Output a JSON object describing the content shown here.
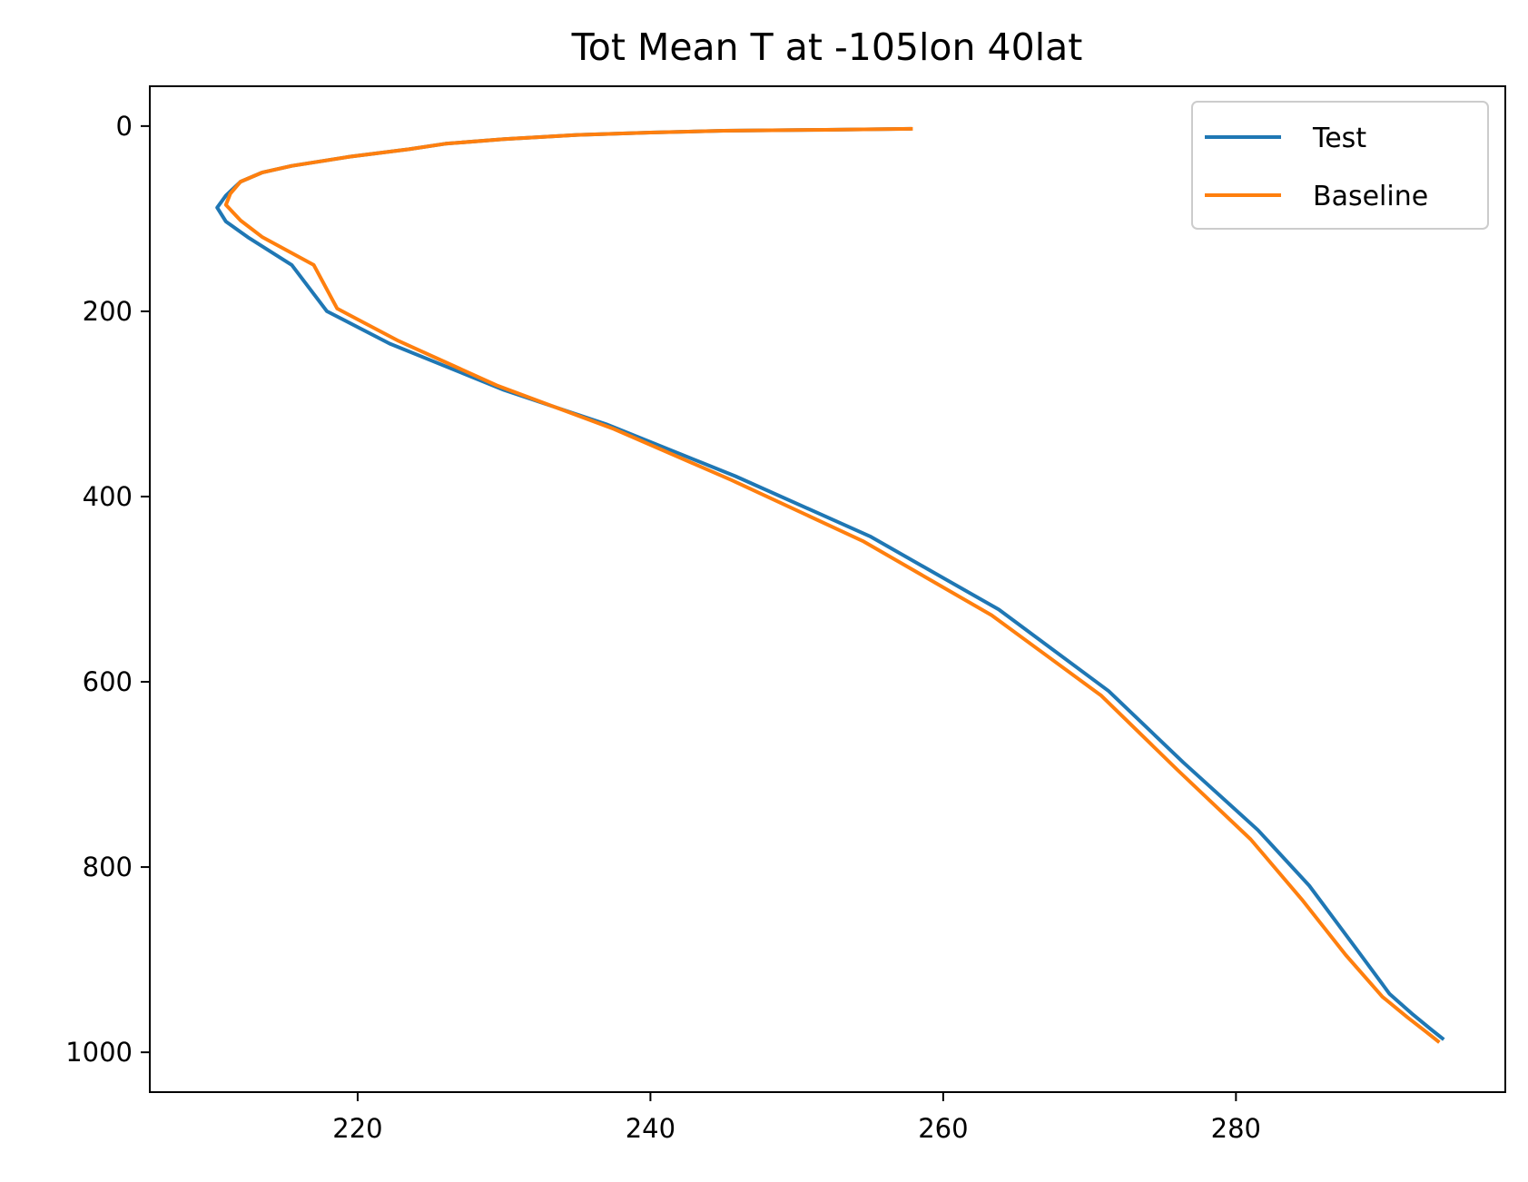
{
  "chart_data": {
    "type": "line",
    "title": "Tot Mean T at -105lon 40lat",
    "xlabel": "",
    "ylabel": "",
    "xlim": [
      205.8,
      298.4
    ],
    "ylim": [
      1043,
      -43
    ],
    "y_inverted": true,
    "x_ticks": [
      220,
      240,
      260,
      280
    ],
    "y_ticks": [
      0,
      200,
      400,
      600,
      800,
      1000
    ],
    "grid": false,
    "legend": "top-right",
    "series": [
      {
        "name": "Test",
        "color": "#1f77b4",
        "points": [
          [
            257.7,
            3
          ],
          [
            252,
            4
          ],
          [
            245,
            5
          ],
          [
            240,
            7
          ],
          [
            235,
            9.5
          ],
          [
            230,
            14
          ],
          [
            226,
            19
          ],
          [
            223.5,
            25
          ],
          [
            219.5,
            33
          ],
          [
            215.5,
            43
          ],
          [
            213.5,
            50
          ],
          [
            212,
            60
          ],
          [
            211,
            75
          ],
          [
            210.4,
            88
          ],
          [
            211,
            103
          ],
          [
            212.5,
            120
          ],
          [
            215.5,
            150
          ],
          [
            217.9,
            200
          ],
          [
            222.2,
            235
          ],
          [
            230,
            285
          ],
          [
            237,
            322
          ],
          [
            245.8,
            378
          ],
          [
            255,
            443
          ],
          [
            263.8,
            522
          ],
          [
            271.3,
            610
          ],
          [
            276.4,
            687
          ],
          [
            281.5,
            760
          ],
          [
            285,
            820
          ],
          [
            288.3,
            890
          ],
          [
            290.5,
            937
          ],
          [
            292,
            958
          ],
          [
            293.3,
            975
          ],
          [
            294.1,
            985
          ]
        ]
      },
      {
        "name": "Baseline",
        "color": "#ff7f0e",
        "points": [
          [
            257.8,
            3
          ],
          [
            252,
            4
          ],
          [
            245,
            5
          ],
          [
            240,
            7
          ],
          [
            235,
            9.5
          ],
          [
            230,
            14
          ],
          [
            226,
            19
          ],
          [
            223.5,
            25
          ],
          [
            219.5,
            33
          ],
          [
            215.5,
            43
          ],
          [
            213.5,
            50
          ],
          [
            212,
            60
          ],
          [
            211.3,
            73
          ],
          [
            211,
            85
          ],
          [
            212,
            102
          ],
          [
            213.5,
            120
          ],
          [
            217,
            150
          ],
          [
            218.6,
            197
          ],
          [
            222.8,
            232
          ],
          [
            229.5,
            280
          ],
          [
            237.5,
            327
          ],
          [
            245.5,
            382
          ],
          [
            254.5,
            448
          ],
          [
            263.3,
            528
          ],
          [
            270.8,
            615
          ],
          [
            276,
            695
          ],
          [
            281,
            770
          ],
          [
            284.5,
            835
          ],
          [
            287.5,
            895
          ],
          [
            290,
            940
          ],
          [
            291.7,
            962
          ],
          [
            293,
            978
          ],
          [
            293.8,
            988
          ]
        ]
      }
    ]
  }
}
